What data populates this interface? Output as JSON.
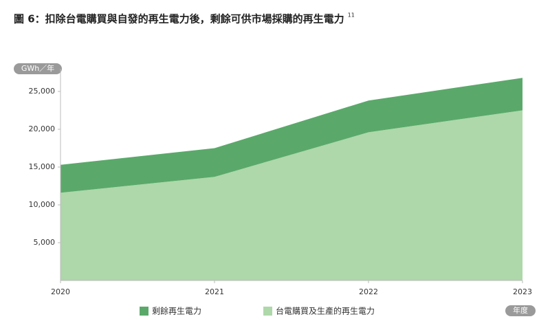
{
  "chart_data": {
    "type": "stacked_area",
    "title": "圖 6：扣除台電購買與自發的再生電力後，剩餘可供市場採購的再生電力",
    "title_note": "11",
    "y_label": "GWh／年",
    "x_label": "年度",
    "x": [
      2020,
      2021,
      2022,
      2023
    ],
    "xlim": [
      2020,
      2023
    ],
    "xticks": [
      2020,
      2021,
      2022,
      2023
    ],
    "series": [
      {
        "name": "台電購買及生產的再生電力",
        "color": "#aed8a9",
        "values": [
          11600,
          13700,
          19600,
          22500
        ]
      },
      {
        "name": "剩餘再生電力",
        "color": "#5aa96a",
        "values": [
          3700,
          3800,
          4200,
          4300
        ]
      }
    ],
    "ylim": [
      0,
      28000
    ],
    "yticks": [
      {
        "value": 5000,
        "label": "5,000"
      },
      {
        "value": 10000,
        "label": "10,000"
      },
      {
        "value": 15000,
        "label": "15,000"
      },
      {
        "value": 20000,
        "label": "20,000"
      },
      {
        "value": 25000,
        "label": "25,000"
      }
    ],
    "grid": false
  }
}
